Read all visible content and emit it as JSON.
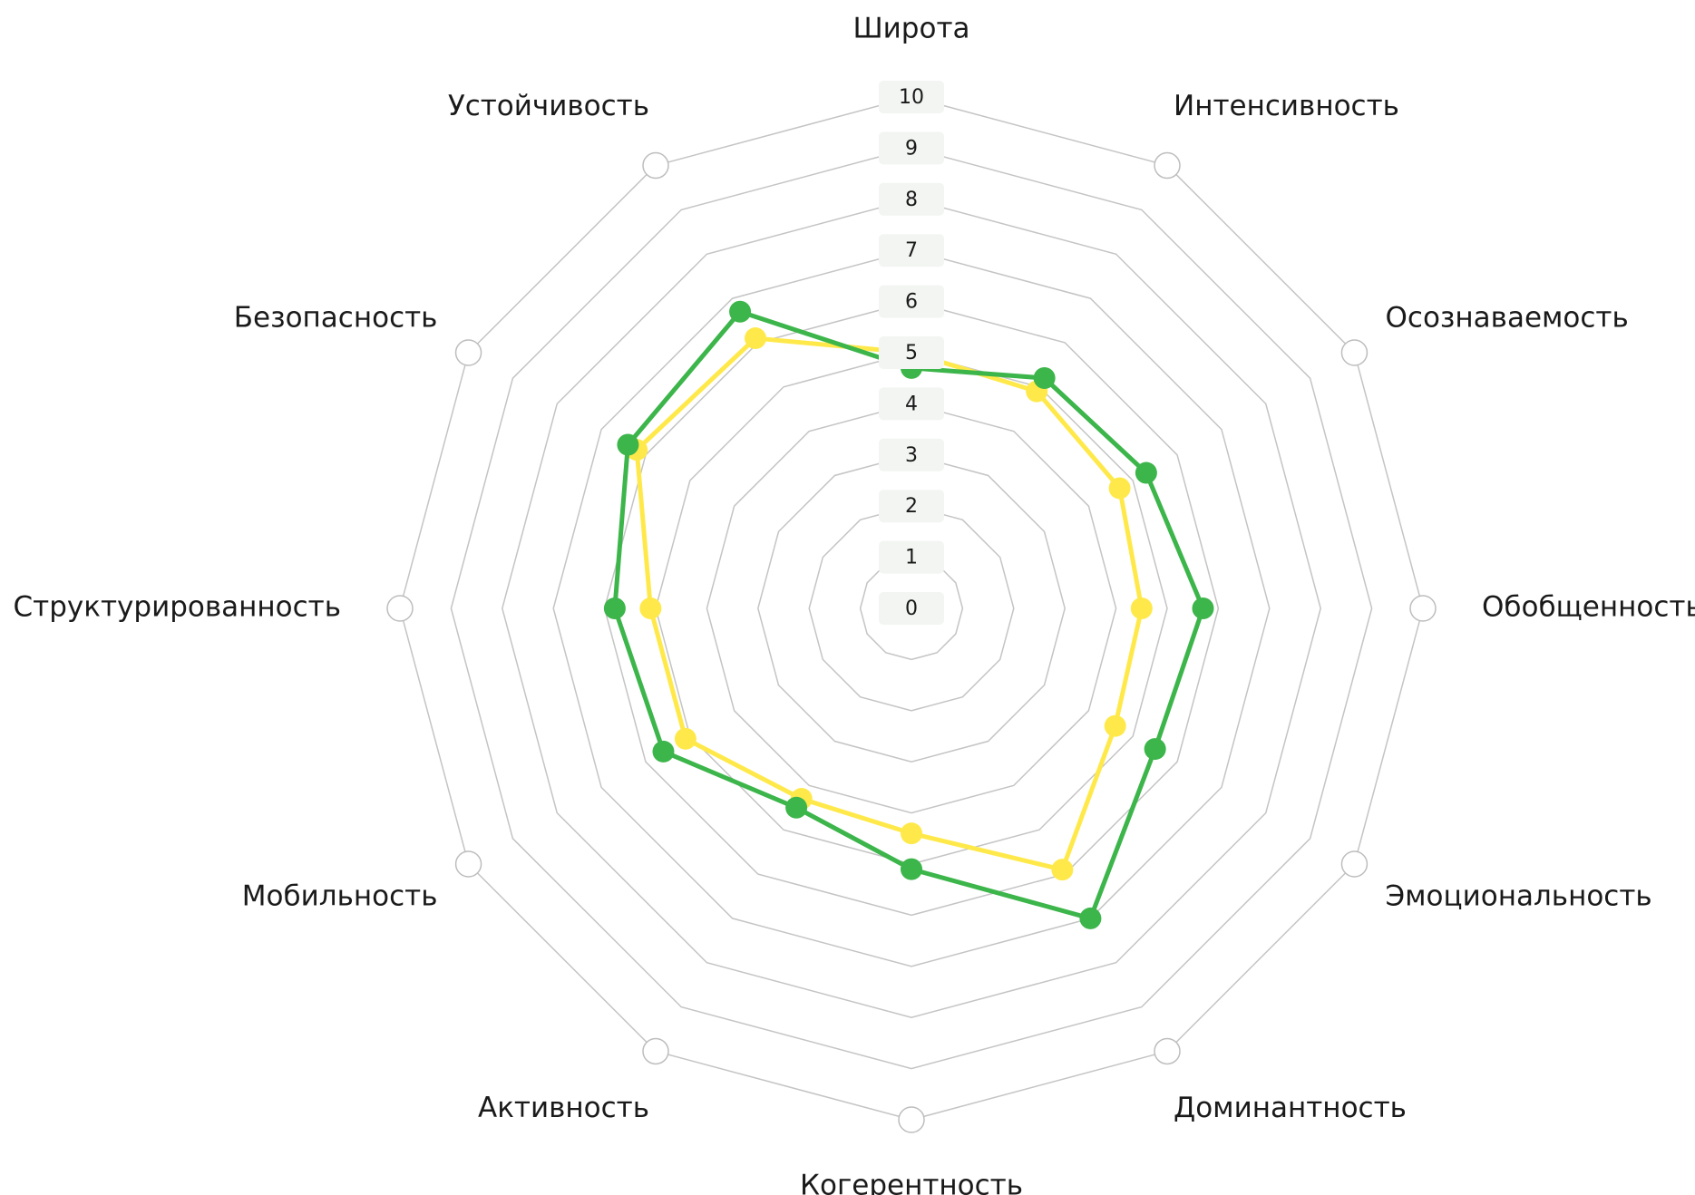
{
  "chart_data": {
    "type": "radar",
    "categories": [
      "Широта",
      "Интенсивность",
      "Осознаваемость",
      "Обобщенность",
      "Эмоциональность",
      "Доминантность",
      "Когерентность",
      "Активность",
      "Мобильность",
      "Структурированность",
      "Безопасность",
      "Устойчивость"
    ],
    "series": [
      {
        "color": "#ffe94a",
        "values": [
          5.0,
          4.9,
          4.7,
          4.5,
          4.6,
          5.9,
          4.4,
          4.3,
          5.1,
          5.1,
          6.2,
          6.1
        ]
      },
      {
        "color": "#3cb54a",
        "values": [
          4.7,
          5.2,
          5.3,
          5.7,
          5.5,
          7.0,
          5.1,
          4.5,
          5.6,
          5.8,
          6.4,
          6.7
        ]
      }
    ],
    "ylim": [
      0,
      10
    ],
    "yticks": [
      0,
      1,
      2,
      3,
      4,
      5,
      6,
      7,
      8,
      9,
      10
    ],
    "grid": true
  }
}
